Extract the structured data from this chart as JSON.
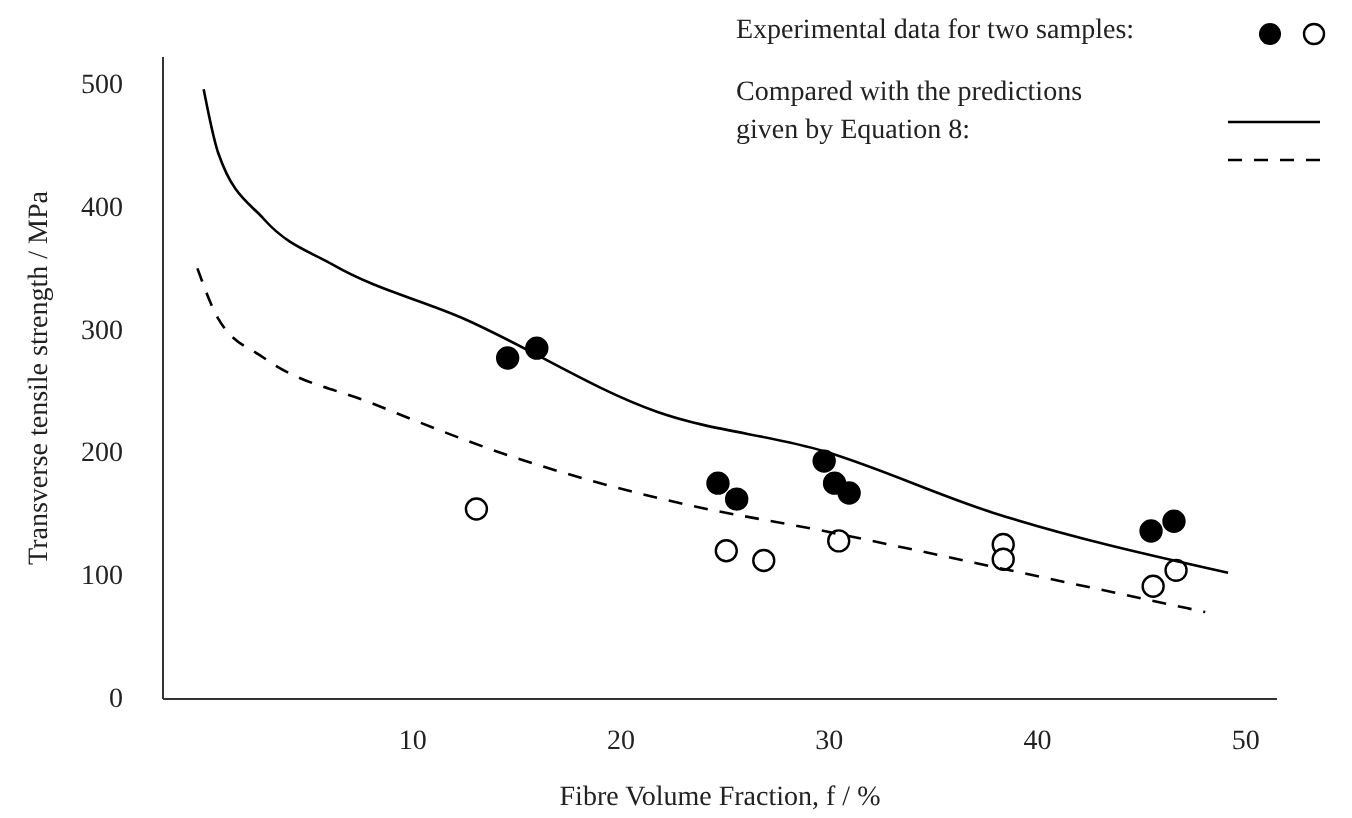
{
  "chart_data": {
    "type": "scatter",
    "xlabel": "Fibre Volume Fraction, f / %",
    "ylabel": "Transverse tensile strength / MPa",
    "xlim": [
      -2,
      51.5
    ],
    "ylim": [
      0,
      523
    ],
    "xticks": [
      10,
      20,
      30,
      40,
      50
    ],
    "yticks": [
      0,
      100,
      200,
      300,
      400,
      500
    ],
    "grid": false,
    "annotations": [
      "Experimental data for two samples:",
      "Compared with the predictions given by Equation 8:"
    ],
    "series": [
      {
        "marker": "circle",
        "color": "#000000",
        "x": [
          14.6,
          16.0,
          24.7,
          25.6,
          29.8,
          30.3,
          31.0,
          45.5,
          46.6
        ],
        "values": [
          277,
          285,
          175,
          162,
          193,
          175,
          167,
          136,
          144
        ]
      },
      {
        "marker": "circle",
        "color": "#ffffff",
        "x": [
          13.1,
          25.1,
          26.9,
          30.5,
          38.4,
          38.4,
          45.6,
          46.7
        ],
        "values": [
          154,
          120,
          112,
          128,
          125,
          113,
          91,
          104
        ]
      },
      {
        "type": "line",
        "line_style": "solid",
        "color": "#000000",
        "x": [
          0,
          0.7,
          2.9,
          6.2,
          12.5,
          21.8,
          29.8,
          37.9,
          49.2
        ],
        "values": [
          496,
          444,
          390,
          353,
          309,
          233,
          201,
          151,
          102
        ]
      },
      {
        "type": "line",
        "line_style": "dashed",
        "color": "#000000",
        "x": [
          -0.3,
          0.7,
          2.9,
          8.1,
          14.4,
          22.8,
          29.8,
          37.9,
          48.1
        ],
        "values": [
          350,
          309,
          277,
          240,
          199,
          159,
          136,
          107,
          70
        ]
      }
    ]
  }
}
